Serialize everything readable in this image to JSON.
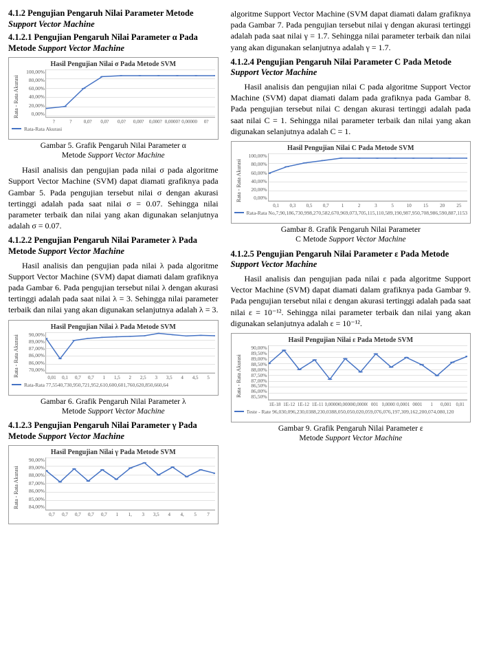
{
  "left": {
    "h412": "4.1.2  Pengujian Pengaruh Nilai Parameter Metode ",
    "h412_em": "Support Vector Machine",
    "h4121": "4.1.2.1  Pengujian Pengaruh Nilai Parameter α Pada Metode ",
    "h4121_em": "Support Vector Machine",
    "chart_sigma": {
      "title": "Hasil Pengujian Nilai σ Pada Metode SVM",
      "ylabel": "Rata - Rata Akurasi",
      "yticks": [
        "100,00%",
        "80,00%",
        "60,00%",
        "40,00%",
        "20,00%",
        "0,00%"
      ],
      "xticks": [
        "?",
        "?",
        "0,0?",
        "0,0?",
        "0,0?",
        "0,00?",
        "0,000?",
        "0,0000?",
        "0,00000",
        "0?"
      ],
      "values": [
        18,
        22,
        60,
        85,
        87,
        87,
        87,
        87,
        87,
        87
      ],
      "ymin": 0,
      "ymax": 100,
      "color": "#4472c4",
      "marker": "#4472c4",
      "legend": "Rata-Rata Akurasi"
    },
    "cap5a": "Gambar 5. Grafik Pengaruh Nilai Parameter  α",
    "cap5b": "Metode ",
    "cap5b_em": "Support Vector Machine",
    "p_sigma": "Hasil analisis dan pengujian pada nilai σ pada algoritme Support Vector Machine (SVM) dapat diamati grafiknya pada Gambar 5. Pada pengujian tersebut nilai σ dengan akurasi tertinggi adalah pada saat nilai σ = 0.07. Sehingga nilai parameter terbaik dan nilai yang akan digunakan selanjutnya adalah σ = 0.07.",
    "h4122": "4.1.2.2  Pengujian Pengaruh Nilai Parameter λ Pada Metode ",
    "h4122_em": "Support Vector Machine",
    "p_lambda": "Hasil analisis dan pengujian pada nilai λ pada algoritme Support Vector Machine (SVM) dapat diamati dalam grafiknya pada Gambar 6. Pada pengujian tersebut nilai λ dengan akurasi tertinggi adalah pada saat nilai λ = 3. Sehingga nilai parameter terbaik dan nilai yang akan digunakan selanjutnya adalah λ = 3.",
    "chart_lambda": {
      "title": "Hasil Pengujian Nilai λ Pada Metode SVM",
      "ylabel": "Rata - Rata Akurasi",
      "yticks": [
        "90,00%",
        "89,00%",
        "87,00%",
        "86,00%",
        "86,00%",
        "70,00%"
      ],
      "xticks": [
        "0,01",
        "0,1",
        "0,7",
        "0,7",
        "1",
        "1,5",
        "2",
        "2,5",
        "3",
        "3,5",
        "4",
        "4,5",
        "5"
      ],
      "values": [
        87,
        77,
        86,
        87,
        87.5,
        87.8,
        88,
        88.3,
        89.5,
        88.8,
        88.2,
        88.5,
        88.3
      ],
      "ymin": 70,
      "ymax": 90,
      "color": "#4472c4",
      "legend": "Rata-Rata 77,5540,730,950,721,952,610,600,601,760,620,850,660,64"
    },
    "cap6a": "Gambar 6. Grafik Pengaruh Nilai Parameter  λ",
    "cap6b": "Metode ",
    "cap6b_em": "Support Vector Machine",
    "h4123": "4.1.2.3  Pengujian Pengaruh Nilai Parameter γ Pada Metode ",
    "h4123_em": "Support Vector Machine",
    "chart_gamma": {
      "title": "Hasil Pengujian Nilai γ Pada Metode SVM",
      "ylabel": "Rata - Rata Akurasi",
      "yticks": [
        "90,00%",
        "89,00%",
        "88,00%",
        "87,00%",
        "86,00%",
        "85,00%",
        "84,00%"
      ],
      "xticks": [
        "0,7",
        "0,7",
        "0,7",
        "0,7",
        "0,7",
        "1",
        "1,",
        "3",
        "3,5",
        "4",
        "4,",
        "5",
        "7"
      ],
      "values": [
        88.5,
        87.2,
        88.7,
        87.3,
        88.6,
        87.5,
        88.8,
        89.4,
        88.0,
        88.9,
        87.8,
        88.6,
        88.2
      ],
      "ymin": 84,
      "ymax": 90,
      "color": "#4472c4"
    }
  },
  "right": {
    "p_gamma": "algoritme Support Vector Machine (SVM dapat diamati dalam grafiknya pada Gambar 7. Pada pengujian tersebut nilai γ dengan akurasi tertinggi adalah pada saat nilai γ = 1.7. Sehingga nilai parameter terbaik dan nilai yang akan digunakan selanjutnya adalah γ = 1.7.",
    "h4124": "4.1.2.4  Pengujian Pengaruh Nilai Parameter C Pada Metode ",
    "h4124_em": "Support Vector Machine",
    "p_c": "Hasil analisis dan pengujian nilai C pada algoritme Support Vector Machine (SVM) dapat diamati dalam pada grafiknya pada Gambar 8. Pada pengujian tersebut nilai C dengan akurasi tertinggi adalah pada saat nilai C = 1. Sehingga nilai parameter terbaik dan nilai yang akan digunakan selanjutnya adalah C = 1.",
    "chart_c": {
      "title": "Hasil Pengujian Nilai C Pada Metode SVM",
      "ylabel": "Rata - Rata Akurasi",
      "yticks": [
        "100,00%",
        "80,00%",
        "60,00%",
        "40,00%",
        "20,00%",
        "0,00%"
      ],
      "xticks": [
        "0,1",
        "0,3",
        "0,5",
        "0,7",
        "1",
        "2",
        "3",
        "5",
        "10",
        "15",
        "20",
        "25"
      ],
      "values": [
        58,
        72,
        80,
        85,
        90,
        90,
        90,
        90,
        90,
        90,
        90,
        90
      ],
      "ymin": 0,
      "ymax": 100,
      "color": "#4472c4",
      "legend": "Rata-Rata  No,7,90,186,730,998,270,582,670,969,073,705,115,110,589,190,987,950,708,986,590,887,1153"
    },
    "cap8a": "Gambar 8. Grafik Pengaruh Nilai Parameter",
    "cap8b": "C Metode ",
    "cap8b_em": "Support Vector Machine",
    "h4125": "4.1.2.5  Pengujian Pengaruh Nilai Parameter ε Pada Metode ",
    "h4125_em": "Support Vector Machine",
    "p_eps": "Hasil analisis dan pengujian pada nilai ε pada algoritme Support Vector Machine (SVM) dapat diamati dalam grafiknya pada Gambar 9. Pada pengujian tersebut nilai ε dengan akurasi tertinggi adalah pada saat nilai ε = 10⁻¹². Sehingga nilai parameter terbaik dan nilai yang akan digunakan selanjutnya adalah ε = 10⁻¹².",
    "chart_eps": {
      "title": "Hasil Pengujian Nilai ε Pada Metode SVM",
      "ylabel": "Rata - Rata Akurasi",
      "yticks": [
        "90,00%",
        "89,50%",
        "89,00%",
        "88,50%",
        "88,00%",
        "87,50%",
        "87,00%",
        "86,50%",
        "86,00%",
        "85,50%"
      ],
      "xticks": [
        "1E-18",
        "1E-12",
        "1E-12",
        "1E-11",
        "0,00000",
        "0,00000",
        "0,00000",
        "001",
        "0,00001",
        "0,0001",
        "0001",
        "1",
        "0,001",
        "0,01"
      ],
      "values": [
        88.5,
        89.6,
        88.0,
        88.8,
        87.2,
        88.9,
        87.8,
        89.3,
        88.2,
        89.0,
        88.4,
        87.5,
        88.6,
        89.1
      ],
      "ymin": 85.5,
      "ymax": 90,
      "color": "#4472c4",
      "legend": "Teste - Rate 96,030,096,230,0388,230,0388,050,050,020,059,076,076,197,309,162,200,074,080,120"
    },
    "cap9a": "Gambar 9. Grafik Pengaruh Nilai Parameter  ε",
    "cap9b": "Metode ",
    "cap9b_em": "Support Vector Machine"
  }
}
